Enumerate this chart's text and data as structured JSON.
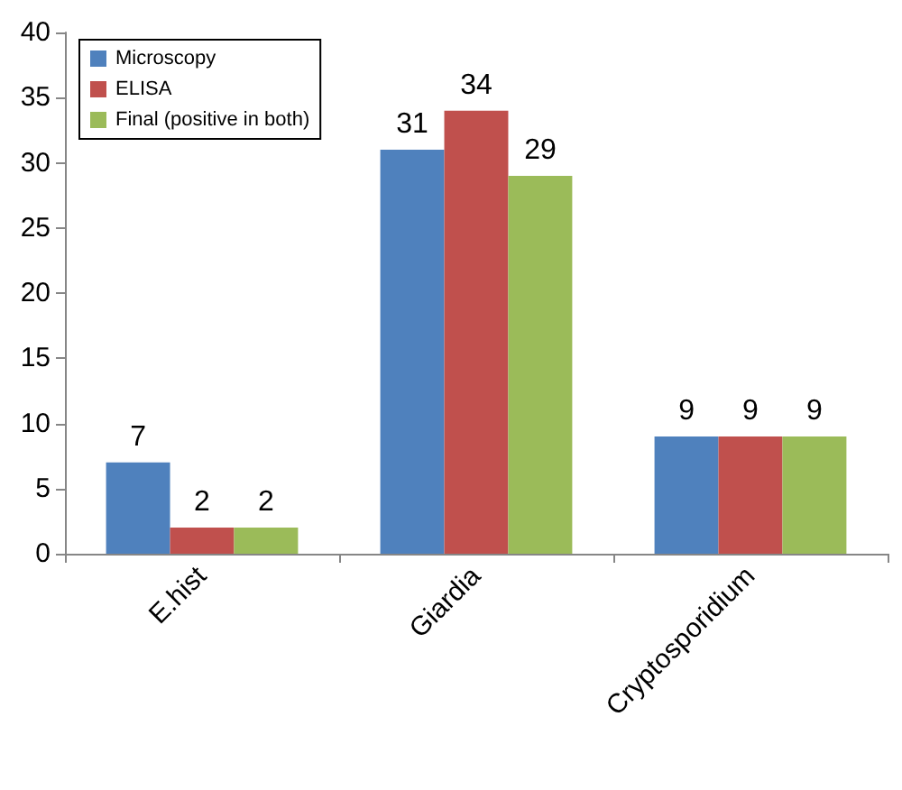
{
  "chart_data": {
    "type": "bar",
    "categories": [
      "E.hist",
      "Giardia",
      "Cryptosporidium"
    ],
    "series": [
      {
        "name": "Microscopy",
        "color": "#4f81bd",
        "values": [
          7,
          31,
          9
        ]
      },
      {
        "name": "ELISA",
        "color": "#c0504d",
        "values": [
          2,
          34,
          9
        ]
      },
      {
        "name": "Final (positive in both)",
        "color": "#9bbb59",
        "values": [
          2,
          29,
          9
        ]
      }
    ],
    "ylim": [
      0,
      40
    ],
    "yticks": [
      0,
      5,
      10,
      15,
      20,
      25,
      30,
      35,
      40
    ],
    "grid": false,
    "legend": "top left",
    "data_labels": true
  }
}
